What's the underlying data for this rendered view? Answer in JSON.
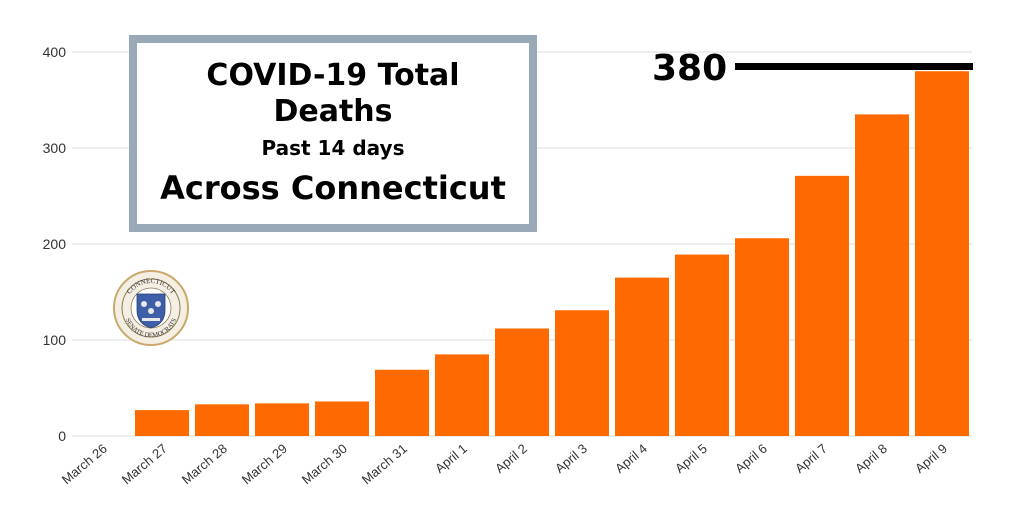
{
  "chart_data": {
    "type": "bar",
    "title": "COVID-19 Total Deaths",
    "subtitle": "Past 14 days",
    "subtitle2": "Across Connecticut",
    "categories": [
      "March 26",
      "March 27",
      "March 28",
      "March 29",
      "March 30",
      "March 31",
      "April 1",
      "April 2",
      "April 3",
      "April 4",
      "April 5",
      "April 6",
      "April 7",
      "April 8",
      "April 9"
    ],
    "values": [
      0,
      27,
      33,
      34,
      36,
      69,
      85,
      112,
      131,
      165,
      189,
      206,
      271,
      335,
      380
    ],
    "y_ticks": [
      "0",
      "100",
      "200",
      "300",
      "400"
    ],
    "ylim": [
      0,
      400
    ],
    "grid": true,
    "bar_color": "#ff6a00",
    "grid_color": "#dddddd",
    "annotation": {
      "label": "380",
      "value": 380
    }
  },
  "logo": {
    "name": "connecticut-senate-democrats-seal",
    "text_top": "CONNECTICUT",
    "text_bottom": "SENATE DEMOCRATS"
  },
  "colors": {
    "title_border": "#9aa9b8",
    "seal_ring": "#c8a96a",
    "seal_center": "#3e5fa8"
  }
}
